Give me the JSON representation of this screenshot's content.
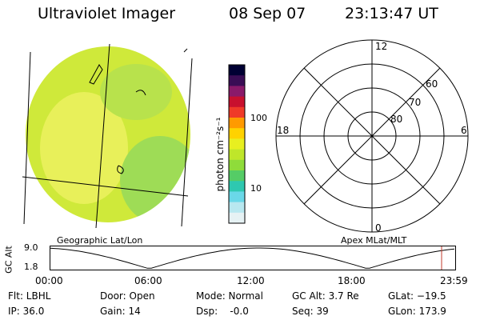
{
  "header": {
    "title": "Ultraviolet Imager",
    "date": "08 Sep 07",
    "time": "23:13:47 UT"
  },
  "colorbar": {
    "unit_label": "photon cm⁻²s⁻¹",
    "tick_high": "100",
    "tick_low": "10",
    "colors": [
      "#000033",
      "#3a0d55",
      "#8a1a6a",
      "#c8102e",
      "#ef3a28",
      "#ff9a00",
      "#ffd200",
      "#e8ef20",
      "#bfe62a",
      "#8fdc3a",
      "#55cc66",
      "#2ec8b0",
      "#6ad8e8",
      "#b8e8f0",
      "#e6f2f4"
    ]
  },
  "image_panel": {
    "caption": "Geographic Lat/Lon",
    "fill_colors": [
      "#cfe93a",
      "#b8e24c",
      "#e8f05a",
      "#9edc56"
    ]
  },
  "polar_grid": {
    "caption": "Apex MLat/MLT",
    "mlt_labels": {
      "top": "12",
      "left": "18",
      "right": "6",
      "bottom": "0"
    },
    "lat_labels": [
      "60",
      "70",
      "80"
    ]
  },
  "timeline": {
    "ylabel": "GC Alt",
    "ytick_high": "9.0",
    "ytick_low": "1.8",
    "xticks": [
      "00:00",
      "06:00",
      "12:00",
      "18:00",
      "23:59"
    ],
    "marker_color": "#c0392b"
  },
  "info": {
    "flt": "Flt: LBHL",
    "ip": "IP: 36.0",
    "door": "Door: Open",
    "gain": "Gain: 14",
    "mode": "Mode: Normal",
    "dsp": "Dsp:    -0.0",
    "gc_alt": "GC Alt: 3.7 Re",
    "seq": "Seq: 39",
    "glat": "GLat: −19.5",
    "glon": "GLon: 173.9"
  }
}
